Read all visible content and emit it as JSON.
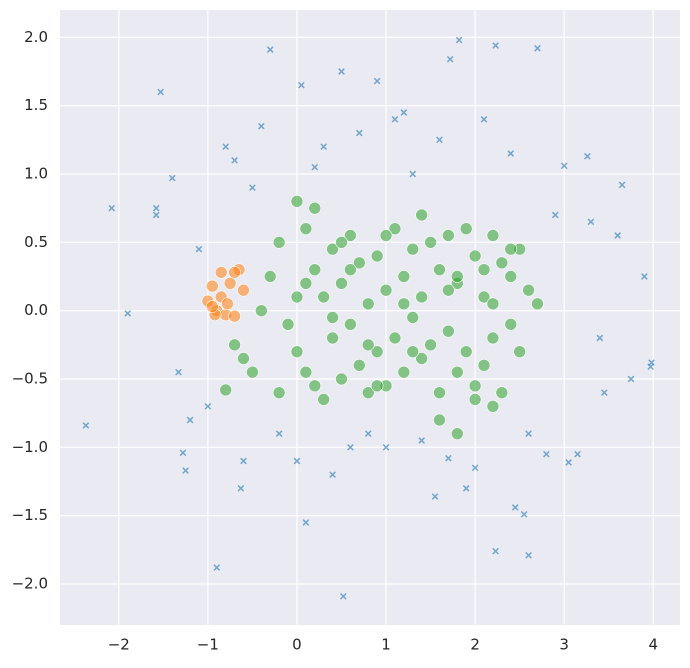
{
  "chart_data": {
    "type": "scatter",
    "background": "#eaeaf2",
    "grid": true,
    "xlim": [
      -2.66,
      4.3
    ],
    "ylim": [
      -2.3,
      2.2
    ],
    "xticks": [
      {
        "value": -2,
        "label": "−2"
      },
      {
        "value": -1,
        "label": "−1"
      },
      0,
      1,
      2,
      3,
      4
    ],
    "yticks": [
      {
        "value": -2,
        "label": "−2.0"
      },
      {
        "value": -1.5,
        "label": "−1.5"
      },
      {
        "value": -1,
        "label": "−1.0"
      },
      {
        "value": -0.5,
        "label": "−0.5"
      },
      {
        "value": 0,
        "label": "0.0"
      },
      0.5,
      {
        "value": 1,
        "label": "1.0"
      },
      1.5,
      {
        "value": 2,
        "label": "2.0"
      }
    ],
    "series": [
      {
        "color": "#1f77b4",
        "marker": "x",
        "x": [
          -2.37,
          -2.08,
          -1.9,
          -1.53,
          -1.58,
          -1.58,
          -1.4,
          -1.33,
          -1.28,
          -1.25,
          -0.9,
          -0.63,
          -0.3,
          0.05,
          0.5,
          0.9,
          1.72,
          1.82,
          2.23,
          2.7,
          0.52,
          0.1,
          2.23,
          2.6,
          2.45,
          2.55,
          3.0,
          3.26,
          3.65,
          3.98,
          3.97,
          3.75,
          3.9,
          3.15,
          3.05,
          3.6,
          3.45,
          1.55,
          1.7,
          -1.1,
          -0.8,
          -0.6,
          -0.4,
          -0.2,
          0.2,
          0.4,
          0.7,
          1.0,
          1.2,
          1.4,
          1.6,
          2.0,
          2.4,
          2.8,
          3.3,
          -1.2,
          -1.0,
          -0.5,
          0.0,
          0.3,
          0.8,
          1.3,
          1.9,
          2.9,
          3.4,
          -0.7,
          0.6,
          1.1,
          2.1,
          2.6
        ],
        "values": [
          -0.84,
          0.75,
          -0.02,
          1.6,
          0.75,
          0.7,
          0.97,
          -0.45,
          -1.04,
          -1.17,
          -1.88,
          -1.3,
          1.91,
          1.65,
          1.75,
          1.68,
          1.84,
          1.98,
          1.94,
          1.92,
          -2.09,
          -1.55,
          -1.76,
          -1.79,
          -1.44,
          -1.49,
          1.06,
          1.13,
          0.92,
          -0.38,
          -0.41,
          -0.5,
          0.25,
          -1.05,
          -1.11,
          0.55,
          -0.6,
          -1.36,
          -1.08,
          0.45,
          1.2,
          -1.1,
          1.35,
          -0.9,
          1.05,
          -1.2,
          1.3,
          -1.0,
          1.45,
          -0.95,
          1.25,
          -1.15,
          1.15,
          -1.05,
          0.65,
          -0.8,
          -0.7,
          0.9,
          -1.1,
          1.2,
          -0.9,
          1.0,
          -1.3,
          0.7,
          -0.2,
          1.1,
          -1.0,
          1.4,
          1.4,
          -0.9
        ]
      },
      {
        "color": "#2ca02c",
        "marker": "o",
        "x": [
          -0.7,
          -0.6,
          -0.5,
          -0.3,
          -0.2,
          -0.1,
          0.0,
          0.0,
          0.1,
          0.1,
          0.2,
          0.2,
          0.3,
          0.3,
          0.4,
          0.4,
          0.5,
          0.5,
          0.6,
          0.6,
          0.7,
          0.7,
          0.8,
          0.8,
          0.9,
          0.9,
          1.0,
          1.0,
          1.1,
          1.1,
          1.2,
          1.2,
          1.3,
          1.3,
          1.4,
          1.4,
          1.5,
          1.5,
          1.6,
          1.6,
          1.7,
          1.7,
          1.8,
          1.8,
          1.9,
          1.9,
          2.0,
          2.0,
          2.1,
          2.1,
          2.2,
          2.2,
          2.3,
          2.3,
          2.4,
          2.4,
          2.5,
          2.5,
          2.6,
          2.7,
          -0.4,
          -0.2,
          0.0,
          0.2,
          0.4,
          0.6,
          0.8,
          1.0,
          1.2,
          1.4,
          1.6,
          1.8,
          2.0,
          2.2,
          2.4,
          0.1,
          0.5,
          0.9,
          1.3,
          1.7,
          2.1,
          -0.8,
          1.8,
          2.2
        ],
        "values": [
          -0.25,
          -0.35,
          -0.45,
          0.25,
          0.5,
          -0.1,
          0.8,
          -0.3,
          0.6,
          -0.45,
          0.3,
          -0.55,
          0.1,
          -0.65,
          0.45,
          -0.2,
          0.2,
          -0.5,
          0.55,
          -0.1,
          0.35,
          -0.4,
          0.05,
          -0.6,
          0.4,
          -0.3,
          0.15,
          -0.55,
          0.6,
          -0.2,
          0.25,
          -0.45,
          0.45,
          -0.05,
          0.1,
          -0.35,
          0.5,
          -0.25,
          0.3,
          -0.6,
          0.55,
          -0.15,
          0.2,
          -0.45,
          0.6,
          -0.3,
          0.4,
          -0.55,
          0.1,
          -0.4,
          0.55,
          -0.2,
          0.35,
          -0.6,
          0.25,
          -0.1,
          0.45,
          -0.3,
          0.15,
          0.05,
          0.0,
          -0.6,
          0.1,
          0.75,
          -0.05,
          0.3,
          -0.25,
          0.55,
          0.05,
          0.7,
          -0.8,
          0.25,
          -0.65,
          0.05,
          0.45,
          0.2,
          0.5,
          -0.55,
          -0.3,
          0.15,
          0.3,
          -0.58,
          -0.9,
          -0.7
        ]
      },
      {
        "color": "#ff7f0e",
        "marker": "o",
        "x": [
          -1.0,
          -0.95,
          -0.9,
          -0.85,
          -0.8,
          -0.75,
          -0.7,
          -0.65,
          -0.6,
          -0.85,
          -0.92,
          -0.78,
          -0.95,
          -0.7
        ],
        "values": [
          0.07,
          0.18,
          0.0,
          0.1,
          -0.03,
          0.2,
          -0.04,
          0.3,
          0.15,
          0.28,
          -0.03,
          0.05,
          0.03,
          0.28
        ]
      }
    ]
  }
}
